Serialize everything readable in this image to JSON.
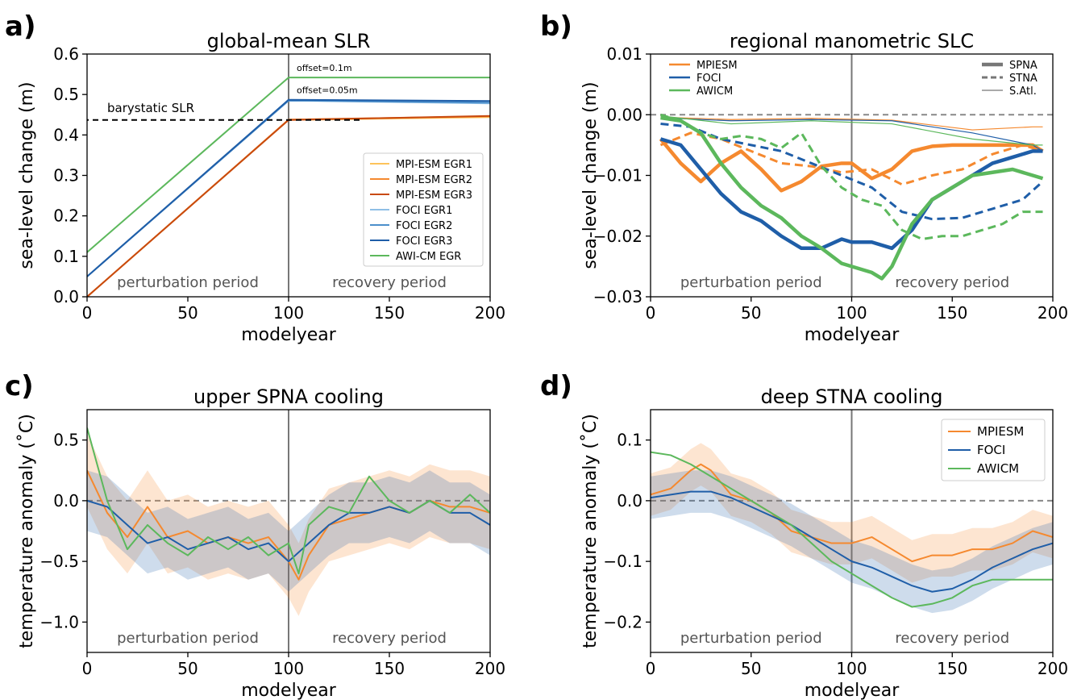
{
  "colors": {
    "mpi1": "#fdc35a",
    "mpi2": "#f5892f",
    "mpi3": "#c84a0f",
    "foci1": "#8fbfe6",
    "foci2": "#4c8fcb",
    "foci3": "#1f5ea8",
    "awi": "#5cb85c",
    "mpiesm": "#f5892f",
    "foci": "#1f5ea8",
    "awicm": "#5cb85c",
    "zero": "#888888",
    "divider": "#777777"
  },
  "labels": {
    "perturbation": "perturbation period",
    "recovery": "recovery period",
    "modelyear": "modelyear"
  },
  "chart_data": [
    {
      "panel": "a)",
      "type": "line",
      "title": "global-mean SLR",
      "xlabel": "modelyear",
      "ylabel": "sea-level change (m)",
      "xlim": [
        0,
        200
      ],
      "ylim": [
        0,
        0.6
      ],
      "xticks": [
        "0",
        "50",
        "100",
        "150",
        "200"
      ],
      "yticks": [
        "0.0",
        "0.1",
        "0.2",
        "0.3",
        "0.4",
        "0.5",
        "0.6"
      ],
      "legend": "center-right",
      "annotations": [
        "barystatic SLR",
        "offset=0.1m",
        "offset=0.05m"
      ],
      "series": [
        {
          "name": "MPI-ESM EGR1",
          "color": "mpi1",
          "x": [
            0,
            100,
            200
          ],
          "y": [
            0.0,
            0.437,
            0.444
          ]
        },
        {
          "name": "MPI-ESM EGR2",
          "color": "mpi2",
          "x": [
            0,
            100,
            200
          ],
          "y": [
            0.0,
            0.438,
            0.446
          ]
        },
        {
          "name": "MPI-ESM EGR3",
          "color": "mpi3",
          "x": [
            0,
            100,
            200
          ],
          "y": [
            0.0,
            0.437,
            0.447
          ]
        },
        {
          "name": "FOCI EGR1",
          "color": "foci1",
          "x": [
            0,
            100,
            200
          ],
          "y": [
            0.05,
            0.485,
            0.478
          ]
        },
        {
          "name": "FOCI EGR2",
          "color": "foci2",
          "x": [
            0,
            100,
            200
          ],
          "y": [
            0.05,
            0.485,
            0.48
          ]
        },
        {
          "name": "FOCI EGR3",
          "color": "foci3",
          "x": [
            0,
            100,
            200
          ],
          "y": [
            0.05,
            0.487,
            0.484
          ]
        },
        {
          "name": "AWI-CM EGR",
          "color": "awi",
          "x": [
            0,
            100,
            200
          ],
          "y": [
            0.11,
            0.542,
            0.542
          ]
        }
      ]
    },
    {
      "panel": "b)",
      "type": "line",
      "title": "regional manometric SLC",
      "xlabel": "modelyear",
      "ylabel": "sea-level change (m)",
      "xlim": [
        0,
        200
      ],
      "ylim": [
        -0.03,
        0.01
      ],
      "xticks": [
        "0",
        "50",
        "100",
        "150",
        "200"
      ],
      "yticks": [
        "0.01",
        "0.00",
        "−0.01",
        "−0.02",
        "−0.03"
      ],
      "legend": "top-left and top-right",
      "model_legend": [
        "MPIESM",
        "FOCI",
        "AWICM"
      ],
      "region_legend": [
        "SPNA",
        "STNA",
        "S.Atl."
      ],
      "series": [
        {
          "name": "MPIESM",
          "region": "SPNA",
          "color": "mpiesm",
          "style": "thick",
          "x": [
            5,
            15,
            25,
            35,
            45,
            55,
            65,
            75,
            85,
            95,
            100,
            110,
            120,
            130,
            140,
            150,
            160,
            170,
            180,
            190,
            195
          ],
          "y": [
            -0.004,
            -0.008,
            -0.011,
            -0.008,
            -0.006,
            -0.009,
            -0.0125,
            -0.011,
            -0.0085,
            -0.008,
            -0.008,
            -0.0105,
            -0.009,
            -0.006,
            -0.0052,
            -0.005,
            -0.005,
            -0.005,
            -0.005,
            -0.005,
            -0.006
          ]
        },
        {
          "name": "MPIESM",
          "region": "STNA",
          "color": "mpiesm",
          "style": "dashed",
          "x": [
            5,
            20,
            35,
            50,
            65,
            80,
            95,
            110,
            125,
            140,
            155,
            170,
            185,
            195
          ],
          "y": [
            -0.005,
            -0.003,
            -0.004,
            -0.006,
            -0.008,
            -0.0085,
            -0.0095,
            -0.009,
            -0.0115,
            -0.01,
            -0.009,
            -0.0065,
            -0.005,
            -0.006
          ]
        },
        {
          "name": "MPIESM",
          "region": "S.Atl.",
          "color": "mpiesm",
          "style": "thin",
          "x": [
            5,
            40,
            80,
            120,
            160,
            190,
            195
          ],
          "y": [
            -0.0004,
            -0.0008,
            -0.0006,
            -0.0009,
            -0.0025,
            -0.002,
            -0.002
          ]
        },
        {
          "name": "FOCI",
          "region": "SPNA",
          "color": "foci",
          "style": "thick",
          "x": [
            5,
            15,
            25,
            35,
            45,
            55,
            65,
            75,
            85,
            95,
            100,
            110,
            120,
            130,
            140,
            150,
            160,
            170,
            180,
            190,
            195
          ],
          "y": [
            -0.004,
            -0.005,
            -0.009,
            -0.013,
            -0.016,
            -0.0175,
            -0.02,
            -0.022,
            -0.022,
            -0.0205,
            -0.021,
            -0.021,
            -0.022,
            -0.019,
            -0.014,
            -0.012,
            -0.01,
            -0.008,
            -0.007,
            -0.006,
            -0.006
          ]
        },
        {
          "name": "FOCI",
          "region": "STNA",
          "color": "foci",
          "style": "dashed",
          "x": [
            5,
            20,
            35,
            50,
            65,
            80,
            95,
            110,
            125,
            140,
            155,
            170,
            185,
            195
          ],
          "y": [
            -0.0015,
            -0.002,
            -0.004,
            -0.005,
            -0.006,
            -0.008,
            -0.01,
            -0.012,
            -0.016,
            -0.0172,
            -0.017,
            -0.0155,
            -0.014,
            -0.011
          ]
        },
        {
          "name": "FOCI",
          "region": "S.Atl.",
          "color": "foci",
          "style": "thin",
          "x": [
            5,
            40,
            80,
            120,
            160,
            190,
            195
          ],
          "y": [
            -0.0005,
            -0.001,
            -0.0008,
            -0.001,
            -0.003,
            -0.005,
            -0.006
          ]
        },
        {
          "name": "AWICM",
          "region": "SPNA",
          "color": "awicm",
          "style": "thick",
          "x": [
            5,
            15,
            25,
            35,
            45,
            55,
            65,
            75,
            85,
            95,
            100,
            110,
            115,
            120,
            130,
            140,
            150,
            160,
            170,
            180,
            190,
            195
          ],
          "y": [
            -0.0005,
            -0.001,
            -0.003,
            -0.008,
            -0.012,
            -0.015,
            -0.017,
            -0.02,
            -0.022,
            -0.0245,
            -0.025,
            -0.026,
            -0.027,
            -0.025,
            -0.018,
            -0.014,
            -0.012,
            -0.01,
            -0.0095,
            -0.009,
            -0.01,
            -0.0105
          ]
        },
        {
          "name": "AWICM",
          "region": "STNA",
          "color": "awicm",
          "style": "dashed",
          "x": [
            5,
            15,
            25,
            35,
            45,
            55,
            65,
            75,
            85,
            95,
            105,
            115,
            125,
            135,
            145,
            155,
            165,
            175,
            185,
            195
          ],
          "y": [
            0.0,
            -0.001,
            -0.003,
            -0.004,
            -0.0035,
            -0.004,
            -0.0055,
            -0.003,
            -0.0085,
            -0.012,
            -0.014,
            -0.015,
            -0.019,
            -0.0205,
            -0.02,
            -0.02,
            -0.019,
            -0.018,
            -0.016,
            -0.016
          ]
        },
        {
          "name": "AWICM",
          "region": "S.Atl.",
          "color": "awicm",
          "style": "thin",
          "x": [
            5,
            40,
            80,
            120,
            160,
            190,
            195
          ],
          "y": [
            -0.0002,
            -0.0015,
            -0.001,
            -0.0015,
            -0.004,
            -0.005,
            -0.005
          ]
        }
      ]
    },
    {
      "panel": "c)",
      "type": "line",
      "title": "upper SPNA cooling",
      "xlabel": "modelyear",
      "ylabel": "temperature anomaly (˚C)",
      "xlim": [
        0,
        200
      ],
      "ylim": [
        -1.25,
        0.75
      ],
      "xticks": [
        "0",
        "50",
        "100",
        "150",
        "200"
      ],
      "yticks": [
        "0.5",
        "0.0",
        "−0.5",
        "−1.0"
      ],
      "series": [
        {
          "name": "MPIESM",
          "color": "mpiesm",
          "band": 0.3,
          "x": [
            0,
            10,
            20,
            30,
            40,
            50,
            60,
            70,
            80,
            90,
            100,
            105,
            110,
            120,
            130,
            140,
            150,
            160,
            170,
            180,
            190,
            200
          ],
          "y": [
            0.25,
            -0.1,
            -0.3,
            -0.05,
            -0.3,
            -0.25,
            -0.35,
            -0.3,
            -0.35,
            -0.3,
            -0.5,
            -0.65,
            -0.45,
            -0.2,
            -0.15,
            -0.1,
            -0.05,
            -0.1,
            0.0,
            -0.05,
            -0.05,
            -0.1
          ]
        },
        {
          "name": "FOCI",
          "color": "foci",
          "band": 0.25,
          "x": [
            0,
            10,
            20,
            30,
            40,
            50,
            60,
            70,
            80,
            90,
            100,
            110,
            120,
            130,
            140,
            150,
            160,
            170,
            180,
            190,
            200
          ],
          "y": [
            0.0,
            -0.05,
            -0.2,
            -0.35,
            -0.3,
            -0.4,
            -0.35,
            -0.3,
            -0.4,
            -0.35,
            -0.5,
            -0.35,
            -0.2,
            -0.1,
            -0.1,
            -0.05,
            -0.1,
            0.0,
            -0.1,
            -0.1,
            -0.2
          ]
        },
        {
          "name": "AWICM",
          "color": "awicm",
          "band": 0,
          "x": [
            0,
            10,
            20,
            30,
            40,
            50,
            60,
            70,
            80,
            90,
            100,
            105,
            110,
            120,
            130,
            140,
            150,
            160,
            170,
            180,
            190,
            200
          ],
          "y": [
            0.6,
            0.0,
            -0.4,
            -0.2,
            -0.35,
            -0.45,
            -0.3,
            -0.4,
            -0.3,
            -0.45,
            -0.35,
            -0.6,
            -0.2,
            -0.05,
            -0.1,
            0.2,
            0.0,
            -0.1,
            0.0,
            -0.1,
            0.05,
            -0.1
          ]
        }
      ]
    },
    {
      "panel": "d)",
      "type": "line",
      "title": "deep STNA cooling",
      "xlabel": "modelyear",
      "ylabel": "temperature anomaly (˚C)",
      "xlim": [
        0,
        200
      ],
      "ylim": [
        -0.25,
        0.15
      ],
      "xticks": [
        "0",
        "50",
        "100",
        "150",
        "200"
      ],
      "yticks": [
        "0.1",
        "0.0",
        "−0.1",
        "−0.2"
      ],
      "legend": "top-right",
      "series": [
        {
          "name": "MPIESM",
          "color": "mpiesm",
          "band": 0.035,
          "x": [
            0,
            10,
            20,
            25,
            30,
            40,
            50,
            60,
            70,
            80,
            90,
            100,
            110,
            120,
            130,
            140,
            150,
            160,
            170,
            180,
            190,
            200
          ],
          "y": [
            0.01,
            0.02,
            0.05,
            0.06,
            0.05,
            0.01,
            0.0,
            -0.02,
            -0.05,
            -0.06,
            -0.07,
            -0.07,
            -0.06,
            -0.08,
            -0.1,
            -0.09,
            -0.09,
            -0.08,
            -0.08,
            -0.07,
            -0.05,
            -0.06
          ]
        },
        {
          "name": "FOCI",
          "color": "foci",
          "band": 0.035,
          "x": [
            0,
            10,
            20,
            30,
            40,
            50,
            60,
            70,
            80,
            90,
            100,
            110,
            120,
            130,
            140,
            150,
            160,
            170,
            180,
            190,
            200
          ],
          "y": [
            0.005,
            0.01,
            0.015,
            0.015,
            0.005,
            -0.01,
            -0.025,
            -0.04,
            -0.06,
            -0.08,
            -0.1,
            -0.11,
            -0.125,
            -0.14,
            -0.15,
            -0.145,
            -0.13,
            -0.11,
            -0.095,
            -0.08,
            -0.07
          ]
        },
        {
          "name": "AWICM",
          "color": "awicm",
          "band": 0,
          "x": [
            0,
            10,
            20,
            30,
            40,
            50,
            60,
            70,
            80,
            90,
            100,
            110,
            120,
            130,
            140,
            150,
            160,
            170,
            180,
            190,
            200
          ],
          "y": [
            0.08,
            0.075,
            0.06,
            0.04,
            0.02,
            0.0,
            -0.02,
            -0.04,
            -0.07,
            -0.1,
            -0.12,
            -0.14,
            -0.16,
            -0.175,
            -0.17,
            -0.16,
            -0.14,
            -0.13,
            -0.13,
            -0.13,
            -0.13
          ]
        }
      ]
    }
  ]
}
